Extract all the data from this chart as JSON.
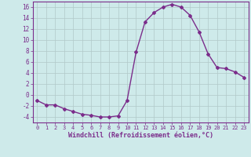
{
  "x": [
    0,
    1,
    2,
    3,
    4,
    5,
    6,
    7,
    8,
    9,
    10,
    11,
    12,
    13,
    14,
    15,
    16,
    17,
    18,
    19,
    20,
    21,
    22,
    23
  ],
  "y": [
    -1,
    -1.8,
    -1.8,
    -2.5,
    -3,
    -3.5,
    -3.7,
    -4,
    -4,
    -3.8,
    -1,
    7.8,
    13.3,
    15,
    16,
    16.5,
    16,
    14.5,
    11.5,
    7.5,
    5,
    4.8,
    4.2,
    3.2
  ],
  "line_color": "#7B2D8B",
  "marker": "D",
  "marker_size": 2,
  "bg_color": "#ceeaea",
  "grid_color": "#b0c8c8",
  "xlabel": "Windchill (Refroidissement éolien,°C)",
  "xlabel_color": "#7B2D8B",
  "tick_color": "#7B2D8B",
  "ylim": [
    -5,
    17
  ],
  "yticks": [
    -4,
    -2,
    0,
    2,
    4,
    6,
    8,
    10,
    12,
    14,
    16
  ],
  "xlim": [
    -0.5,
    23.5
  ],
  "xticks": [
    0,
    1,
    2,
    3,
    4,
    5,
    6,
    7,
    8,
    9,
    10,
    11,
    12,
    13,
    14,
    15,
    16,
    17,
    18,
    19,
    20,
    21,
    22,
    23
  ]
}
